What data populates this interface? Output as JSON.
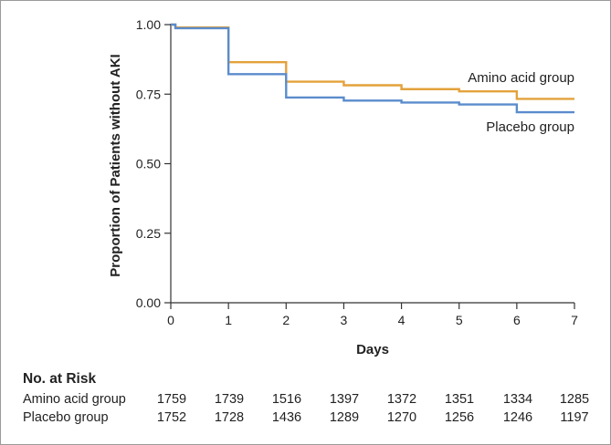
{
  "chart_data": {
    "type": "line",
    "step": true,
    "ylabel": "Proportion of Patients without AKI",
    "xlabel": "Days",
    "xlim": [
      0,
      7
    ],
    "ylim": [
      0,
      1
    ],
    "x_ticks": [
      "0",
      "1",
      "2",
      "3",
      "4",
      "5",
      "6",
      "7"
    ],
    "y_ticks": [
      "0.00",
      "0.25",
      "0.50",
      "0.75",
      "1.00"
    ],
    "grid": false,
    "series": [
      {
        "name": "Amino acid group",
        "color": "#e3a23b",
        "points": [
          [
            0,
            1.0
          ],
          [
            0.08,
            0.99
          ],
          [
            1,
            0.865
          ],
          [
            2,
            0.795
          ],
          [
            3,
            0.782
          ],
          [
            4,
            0.768
          ],
          [
            5,
            0.76
          ],
          [
            6,
            0.733
          ],
          [
            7,
            0.733
          ]
        ]
      },
      {
        "name": "Placebo group",
        "color": "#5b8ccc",
        "points": [
          [
            0,
            1.0
          ],
          [
            0.08,
            0.987
          ],
          [
            1,
            0.822
          ],
          [
            2,
            0.738
          ],
          [
            3,
            0.727
          ],
          [
            4,
            0.72
          ],
          [
            5,
            0.713
          ],
          [
            6,
            0.685
          ],
          [
            7,
            0.685
          ]
        ]
      }
    ]
  },
  "risk_table": {
    "title": "No. at Risk",
    "rows": [
      {
        "label": "Amino acid group",
        "values": [
          "1759",
          "1739",
          "1516",
          "1397",
          "1372",
          "1351",
          "1334",
          "1285"
        ]
      },
      {
        "label": "Placebo group",
        "values": [
          "1752",
          "1728",
          "1436",
          "1289",
          "1270",
          "1256",
          "1246",
          "1197"
        ]
      }
    ]
  }
}
